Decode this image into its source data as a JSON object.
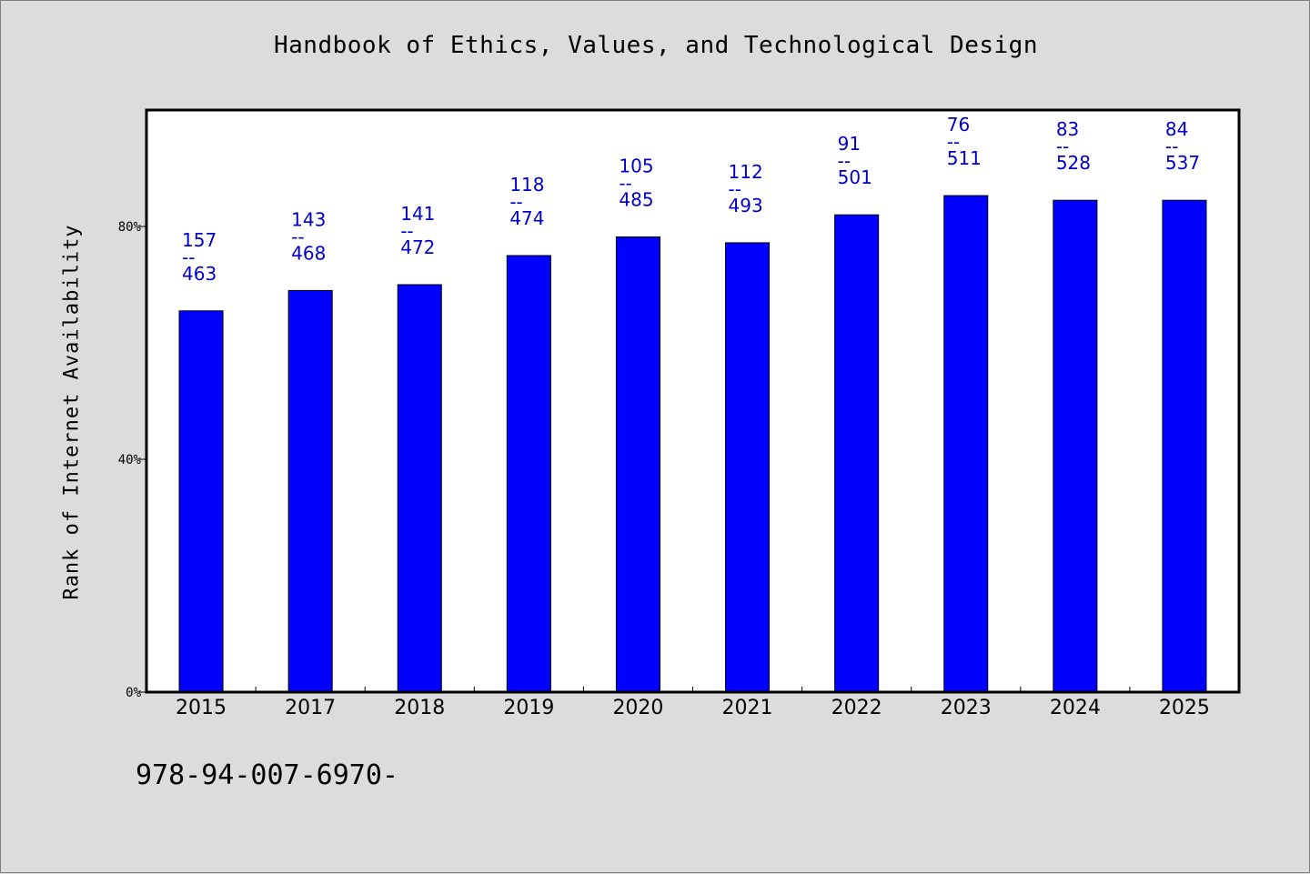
{
  "chart_data": {
    "type": "bar",
    "title": "Handbook of Ethics, Values, and Technological Design",
    "xlabel": "",
    "ylabel": "Rank of Internet Availability",
    "categories": [
      "2015",
      "2017",
      "2018",
      "2019",
      "2020",
      "2021",
      "2022",
      "2023",
      "2024",
      "2025"
    ],
    "values": [
      65.5,
      69,
      70,
      75,
      78.2,
      77.2,
      82,
      85.3,
      84.5,
      84.5
    ],
    "data_labels": [
      {
        "top": "157",
        "mid": "--",
        "bottom": "463"
      },
      {
        "top": "143",
        "mid": "--",
        "bottom": "468"
      },
      {
        "top": "141",
        "mid": "--",
        "bottom": "472"
      },
      {
        "top": "118",
        "mid": "--",
        "bottom": "474"
      },
      {
        "top": "105",
        "mid": "--",
        "bottom": "485"
      },
      {
        "top": "112",
        "mid": "--",
        "bottom": "493"
      },
      {
        "top": "91",
        "mid": "--",
        "bottom": "501"
      },
      {
        "top": "76",
        "mid": "--",
        "bottom": "511"
      },
      {
        "top": "83",
        "mid": "--",
        "bottom": "528"
      },
      {
        "top": "84",
        "mid": "--",
        "bottom": "537"
      }
    ],
    "ylim": [
      0,
      100
    ],
    "yticks": [
      0,
      40,
      80
    ],
    "ytick_labels": [
      "0%",
      "40%",
      "80%"
    ],
    "grid": false,
    "colors": {
      "bar": "#0000ff",
      "label": "#0000cc",
      "background": "#dcdcdc",
      "plot_background": "#ffffff"
    }
  },
  "footnote": "978-94-007-6970-"
}
